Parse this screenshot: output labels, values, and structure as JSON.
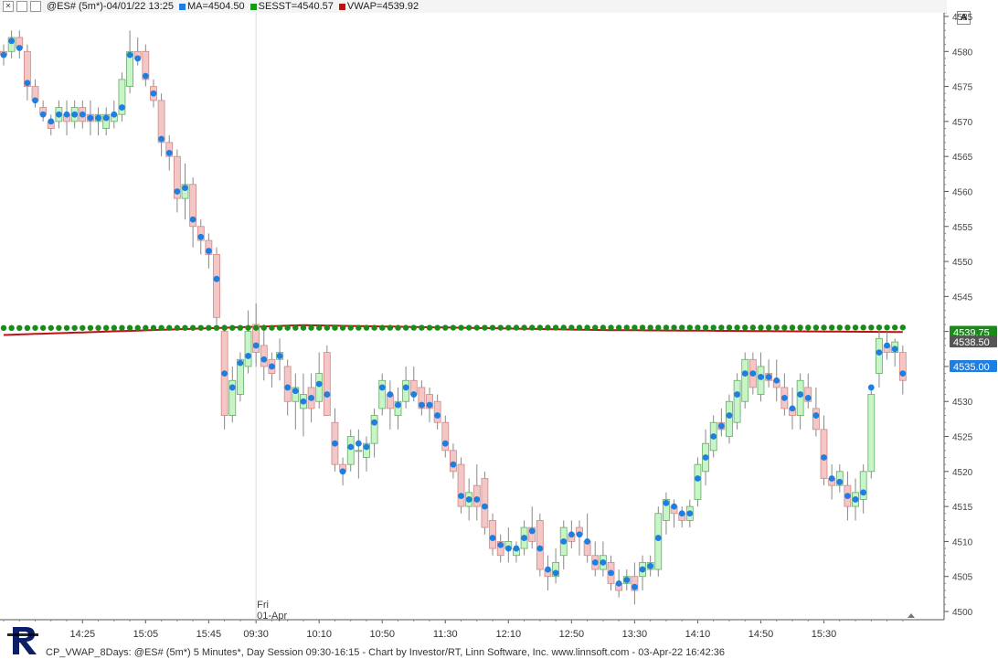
{
  "header": {
    "symbol_label": "@ES# (5m*)-04/01/22 13:25",
    "legend": [
      {
        "text": "MA=4504.50",
        "color": "#1f7fe0"
      },
      {
        "text": "SESST=4540.57",
        "color": "#1a9a1a"
      },
      {
        "text": "VWAP=4539.92",
        "color": "#c01010"
      }
    ]
  },
  "autoscale_label": "A",
  "status_bar": "CP_VWAP_8Days: @ES# (5m*) 5 Minutes*, Day Session 09:30-16:15 - Chart by Investor/RT, Linn Software, Inc. www.linnsoft.com - 03-Apr-22 16:42:36",
  "colors": {
    "up_fill": "#c8f5c8",
    "up_border": "#66aa66",
    "down_fill": "#f5c6c6",
    "down_border": "#cc8888",
    "ma_dot": "#1f7fe0",
    "sesst_dot": "#1a8a1a",
    "vwap_line": "#c01010",
    "price_label": "#1f7fe0",
    "sesst_label": "#1a8a1a",
    "vwap_label": "#555555"
  },
  "chart_data": {
    "type": "candlestick",
    "ylim": [
      4498,
      4587
    ],
    "yticks": [
      4500,
      4505,
      4510,
      4515,
      4520,
      4525,
      4530,
      4535,
      4540,
      4545,
      4550,
      4555,
      4560,
      4565,
      4570,
      4575,
      4580,
      4585
    ],
    "xticks": [
      {
        "label": "14:25",
        "bar": 10
      },
      {
        "label": "15:05",
        "bar": 18
      },
      {
        "label": "15:45",
        "bar": 26
      },
      {
        "label": "09:30",
        "bar": 32
      },
      {
        "label": "10:10",
        "bar": 40
      },
      {
        "label": "10:50",
        "bar": 48
      },
      {
        "label": "11:30",
        "bar": 56
      },
      {
        "label": "12:10",
        "bar": 64
      },
      {
        "label": "12:50",
        "bar": 72
      },
      {
        "label": "13:30",
        "bar": 80
      },
      {
        "label": "14:10",
        "bar": 88
      },
      {
        "label": "14:50",
        "bar": 96
      },
      {
        "label": "15:30",
        "bar": 104
      }
    ],
    "session_break": {
      "bar": 32,
      "day_label": "Fri",
      "date_label": "01-Apr"
    },
    "candles": [
      [
        4580,
        4581,
        4578,
        4579.5
      ],
      [
        4580,
        4583,
        4579,
        4582
      ],
      [
        4582,
        4583,
        4579,
        4580.5
      ],
      [
        4580,
        4581,
        4573,
        4575
      ],
      [
        4575,
        4576,
        4572,
        4573
      ],
      [
        4572,
        4573,
        4570,
        4571
      ],
      [
        4570,
        4571,
        4568,
        4569
      ],
      [
        4570,
        4573,
        4569,
        4572
      ],
      [
        4571,
        4573,
        4568,
        4570
      ],
      [
        4570,
        4573,
        4569,
        4572
      ],
      [
        4572,
        4573,
        4569,
        4570
      ],
      [
        4571,
        4573,
        4568,
        4570
      ],
      [
        4570,
        4572,
        4568,
        4571
      ],
      [
        4569,
        4572,
        4568,
        4571
      ],
      [
        4570,
        4573,
        4569,
        4571
      ],
      [
        4571,
        4577,
        4570,
        4576
      ],
      [
        4575,
        4583,
        4574,
        4580
      ],
      [
        4580,
        4582,
        4578,
        4579
      ],
      [
        4580,
        4581,
        4575,
        4576
      ],
      [
        4575,
        4576,
        4572,
        4573
      ],
      [
        4573,
        4574,
        4565,
        4567
      ],
      [
        4567,
        4568,
        4563,
        4565
      ],
      [
        4565,
        4566,
        4557,
        4559
      ],
      [
        4559,
        4564,
        4556,
        4561
      ],
      [
        4561,
        4562,
        4552,
        4555
      ],
      [
        4555,
        4556,
        4551,
        4553
      ],
      [
        4553,
        4554,
        4549,
        4551
      ],
      [
        4551,
        4552,
        4541,
        4542
      ],
      [
        4540,
        4541,
        4526,
        4528
      ],
      [
        4528,
        4535,
        4527,
        4533
      ],
      [
        4531,
        4537,
        4530,
        4536
      ],
      [
        4535,
        4543,
        4534,
        4540
      ],
      [
        4541,
        4544,
        4535,
        4537
      ],
      [
        4538,
        4541,
        4533,
        4535
      ],
      [
        4536,
        4537,
        4532,
        4534
      ],
      [
        4536,
        4539,
        4533,
        4537
      ],
      [
        4535,
        4536,
        4528,
        4530
      ],
      [
        4530,
        4534,
        4526,
        4532
      ],
      [
        4529,
        4534,
        4525,
        4531
      ],
      [
        4532,
        4534,
        4527,
        4529
      ],
      [
        4530,
        4537,
        4529,
        4534
      ],
      [
        4537,
        4538,
        4528,
        4528
      ],
      [
        4527,
        4529,
        4520,
        4521
      ],
      [
        4521,
        4522,
        4518,
        4520
      ],
      [
        4521,
        4526,
        4520,
        4525
      ],
      [
        4523,
        4526,
        4519,
        4523
      ],
      [
        4522,
        4525,
        4520,
        4524
      ],
      [
        4524,
        4529,
        4522,
        4528
      ],
      [
        4529,
        4534,
        4528,
        4533
      ],
      [
        4531,
        4533,
        4526,
        4529
      ],
      [
        4528,
        4532,
        4526,
        4530
      ],
      [
        4530,
        4535,
        4529,
        4533
      ],
      [
        4533,
        4535,
        4530,
        4531
      ],
      [
        4532,
        4533,
        4528,
        4529
      ],
      [
        4531,
        4532,
        4527,
        4529
      ],
      [
        4530,
        4531,
        4526,
        4527
      ],
      [
        4527,
        4528,
        4522,
        4523
      ],
      [
        4523,
        4524,
        4519,
        4520
      ],
      [
        4521,
        4522,
        4514,
        4515
      ],
      [
        4515,
        4519,
        4513,
        4517
      ],
      [
        4518,
        4521,
        4513,
        4515
      ],
      [
        4519,
        4520,
        4511,
        4512
      ],
      [
        4513,
        4514,
        4508,
        4509
      ],
      [
        4510,
        4511,
        4507,
        4508
      ],
      [
        4509,
        4512,
        4507,
        4510
      ],
      [
        4508,
        4510,
        4507,
        4509
      ],
      [
        4509,
        4513,
        4508,
        4512
      ],
      [
        4512,
        4515,
        4509,
        4510
      ],
      [
        4513,
        4514,
        4505,
        4506
      ],
      [
        4506,
        4508,
        4503,
        4505
      ],
      [
        4505,
        4509,
        4504,
        4507
      ],
      [
        4508,
        4513,
        4506,
        4512
      ],
      [
        4511,
        4513,
        4509,
        4510
      ],
      [
        4512,
        4513,
        4508,
        4511
      ],
      [
        4510,
        4514,
        4507,
        4508
      ],
      [
        4508,
        4510,
        4505,
        4506
      ],
      [
        4506,
        4510,
        4505,
        4508
      ],
      [
        4507,
        4508,
        4503,
        4504
      ],
      [
        4504,
        4506,
        4502,
        4503
      ],
      [
        4504,
        4506,
        4503,
        4505
      ],
      [
        4505,
        4507,
        4501,
        4503
      ],
      [
        4505,
        4508,
        4503,
        4507
      ],
      [
        4506,
        4508,
        4505,
        4507
      ],
      [
        4506,
        4515,
        4505,
        4514
      ],
      [
        4513,
        4517,
        4511,
        4516
      ],
      [
        4515,
        4516,
        4512,
        4514
      ],
      [
        4514,
        4515,
        4512,
        4513
      ],
      [
        4513,
        4516,
        4512,
        4515
      ],
      [
        4516,
        4522,
        4515,
        4521
      ],
      [
        4520,
        4526,
        4518,
        4524
      ],
      [
        4523,
        4528,
        4522,
        4527
      ],
      [
        4527,
        4529,
        4525,
        4526
      ],
      [
        4525,
        4531,
        4524,
        4530
      ],
      [
        4527,
        4534,
        4526,
        4533
      ],
      [
        4530,
        4537,
        4529,
        4536
      ],
      [
        4536,
        4537,
        4531,
        4532
      ],
      [
        4531,
        4537,
        4530,
        4535
      ],
      [
        4534,
        4536,
        4532,
        4533
      ],
      [
        4533,
        4536,
        4530,
        4532
      ],
      [
        4532,
        4534,
        4528,
        4529
      ],
      [
        4529,
        4532,
        4526,
        4528
      ],
      [
        4528,
        4534,
        4526,
        4533
      ],
      [
        4532,
        4534,
        4529,
        4530
      ],
      [
        4529,
        4532,
        4525,
        4526
      ],
      [
        4526,
        4528,
        4518,
        4519
      ],
      [
        4519,
        4521,
        4516,
        4518
      ],
      [
        4518,
        4521,
        4517,
        4520
      ],
      [
        4518,
        4520,
        4513,
        4515
      ],
      [
        4515,
        4519,
        4513,
        4517
      ],
      [
        4516,
        4521,
        4514,
        4520
      ],
      [
        4520,
        4532,
        4519,
        4531
      ],
      [
        4534,
        4541,
        4532,
        4539
      ],
      [
        4538,
        4540,
        4536,
        4537
      ],
      [
        4537,
        4539,
        4535,
        4538.5
      ],
      [
        4537,
        4538,
        4531,
        4533
      ]
    ],
    "ma": [
      4579.5,
      4581.5,
      4580.5,
      4575.5,
      4573,
      4571,
      4570,
      4571,
      4571,
      4571,
      4571,
      4570.5,
      4570.5,
      4570.5,
      4571,
      4572,
      4579.5,
      4579,
      4576.5,
      4574,
      4567.5,
      4565.5,
      4560,
      4560.5,
      4556,
      4553.5,
      4551.5,
      4547.5,
      4534,
      4532,
      4535.5,
      4536.5,
      4538,
      4536,
      4535,
      4536.5,
      4532,
      4531.5,
      4530,
      4530.5,
      4532.5,
      4531,
      4524,
      4520,
      4523.5,
      4524,
      4523.5,
      4527,
      4532,
      4531,
      4529.5,
      4532,
      4531,
      4529.5,
      4529.5,
      4528,
      4524,
      4521,
      4516.5,
      4516,
      4516,
      4515,
      4510.5,
      4509.5,
      4509,
      4509,
      4510.5,
      4511.5,
      4509,
      4506,
      4505.5,
      4510,
      4511,
      4511,
      4510,
      4507,
      4507,
      4505.5,
      4504,
      4504.5,
      4503.5,
      4506,
      4506.5,
      4510.5,
      4515.5,
      4515,
      4514,
      4514,
      4519,
      4522,
      4525,
      4526.5,
      4528,
      4531,
      4534,
      4534,
      4533.5,
      4533.5,
      4533,
      4530.5,
      4529,
      4531,
      4530.5,
      4528,
      4522,
      4519,
      4518.5,
      4516.5,
      4516,
      4517,
      4532,
      4537,
      4538,
      4537.5,
      4534
    ],
    "sesst": [
      4540.5,
      4540.57
    ],
    "vwap": [
      4539.5,
      4540.9,
      4540.2,
      4539.92
    ],
    "labels": {
      "sesst": "4539.75",
      "vwap": "4538.50",
      "price": "4535.00"
    }
  }
}
